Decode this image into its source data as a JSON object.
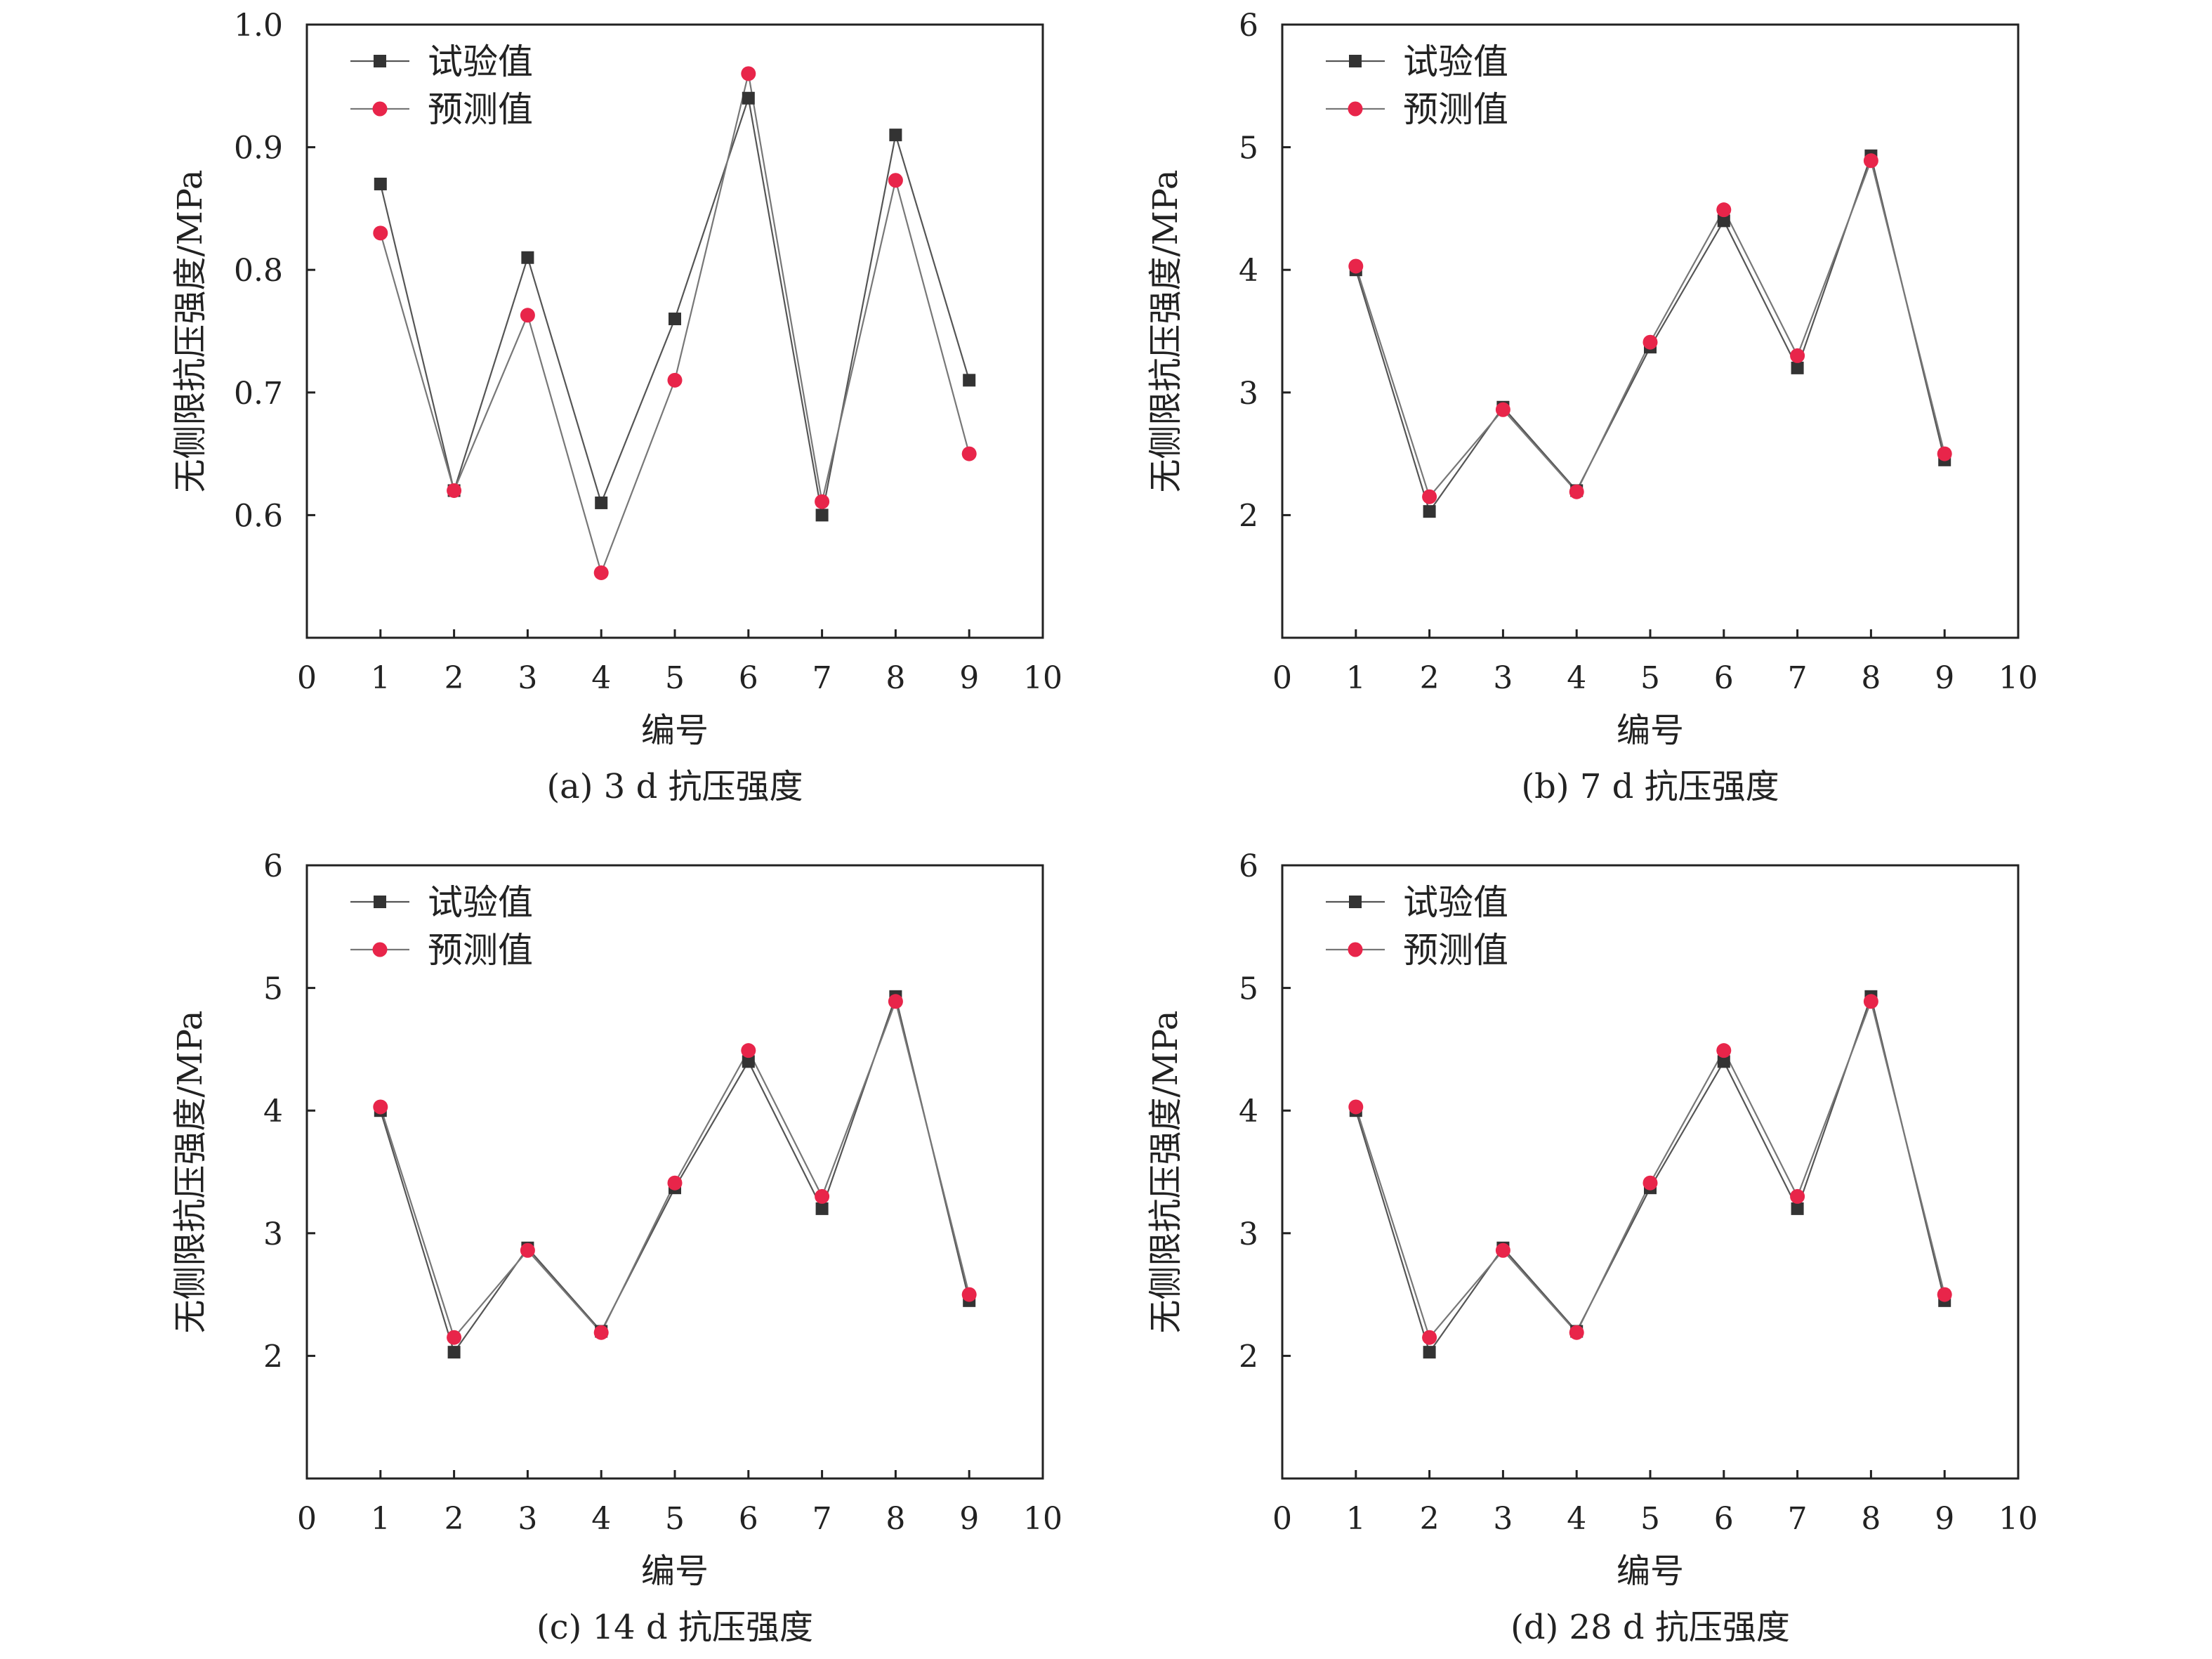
{
  "chart_data": [
    {
      "type": "line",
      "caption": "(a) 3 d 抗压强度",
      "xlabel": "编号",
      "ylabel": "无侧限抗压强度/MPa",
      "xlim": [
        0,
        10
      ],
      "ylim": [
        0.5,
        1.0
      ],
      "xticks": [
        0,
        1,
        2,
        3,
        4,
        5,
        6,
        7,
        8,
        9,
        10
      ],
      "yticks": [
        0.6,
        0.7,
        0.8,
        0.9,
        1.0
      ],
      "ytick_labels": [
        "0.6",
        "0.7",
        "0.8",
        "0.9",
        "1.0"
      ],
      "legend_position": "top-left",
      "series": [
        {
          "name": "试验值",
          "marker": "square",
          "color": "#333333",
          "x": [
            1,
            2,
            3,
            4,
            5,
            6,
            7,
            8,
            9
          ],
          "values": [
            0.87,
            0.62,
            0.81,
            0.61,
            0.76,
            0.94,
            0.6,
            0.91,
            0.71
          ]
        },
        {
          "name": "预测值",
          "marker": "circle",
          "color": "#e8254a",
          "x": [
            1,
            2,
            3,
            4,
            5,
            6,
            7,
            8,
            9
          ],
          "values": [
            0.83,
            0.62,
            0.763,
            0.553,
            0.71,
            0.96,
            0.611,
            0.873,
            0.65
          ]
        }
      ]
    },
    {
      "type": "line",
      "caption": "(b) 7 d 抗压强度",
      "xlabel": "编号",
      "ylabel": "无侧限抗压强度/MPa",
      "xlim": [
        0,
        10
      ],
      "ylim": [
        1,
        6
      ],
      "xticks": [
        0,
        1,
        2,
        3,
        4,
        5,
        6,
        7,
        8,
        9,
        10
      ],
      "yticks": [
        2,
        3,
        4,
        5,
        6
      ],
      "ytick_labels": [
        "2",
        "3",
        "4",
        "5",
        "6"
      ],
      "legend_position": "top-left",
      "series": [
        {
          "name": "试验值",
          "marker": "square",
          "color": "#333333",
          "x": [
            1,
            2,
            3,
            4,
            5,
            6,
            7,
            8,
            9
          ],
          "values": [
            4.0,
            2.03,
            2.88,
            2.2,
            3.37,
            4.4,
            3.2,
            4.93,
            2.45
          ]
        },
        {
          "name": "预测值",
          "marker": "circle",
          "color": "#e8254a",
          "x": [
            1,
            2,
            3,
            4,
            5,
            6,
            7,
            8,
            9
          ],
          "values": [
            4.03,
            2.15,
            2.86,
            2.19,
            3.41,
            4.49,
            3.3,
            4.89,
            2.5
          ]
        }
      ]
    },
    {
      "type": "line",
      "caption": "(c) 14 d 抗压强度",
      "xlabel": "编号",
      "ylabel": "无侧限抗压强度/MPa",
      "xlim": [
        0,
        10
      ],
      "ylim": [
        1,
        6
      ],
      "xticks": [
        0,
        1,
        2,
        3,
        4,
        5,
        6,
        7,
        8,
        9,
        10
      ],
      "yticks": [
        2,
        3,
        4,
        5,
        6
      ],
      "ytick_labels": [
        "2",
        "3",
        "4",
        "5",
        "6"
      ],
      "legend_position": "top-left",
      "series": [
        {
          "name": "试验值",
          "marker": "square",
          "color": "#333333",
          "x": [
            1,
            2,
            3,
            4,
            5,
            6,
            7,
            8,
            9
          ],
          "values": [
            4.0,
            2.03,
            2.88,
            2.2,
            3.37,
            4.4,
            3.2,
            4.93,
            2.45
          ]
        },
        {
          "name": "预测值",
          "marker": "circle",
          "color": "#e8254a",
          "x": [
            1,
            2,
            3,
            4,
            5,
            6,
            7,
            8,
            9
          ],
          "values": [
            4.03,
            2.15,
            2.86,
            2.19,
            3.41,
            4.49,
            3.3,
            4.89,
            2.5
          ]
        }
      ]
    },
    {
      "type": "line",
      "caption": "(d) 28 d 抗压强度",
      "xlabel": "编号",
      "ylabel": "无侧限抗压强度/MPa",
      "xlim": [
        0,
        10
      ],
      "ylim": [
        1,
        6
      ],
      "xticks": [
        0,
        1,
        2,
        3,
        4,
        5,
        6,
        7,
        8,
        9,
        10
      ],
      "yticks": [
        2,
        3,
        4,
        5,
        6
      ],
      "ytick_labels": [
        "2",
        "3",
        "4",
        "5",
        "6"
      ],
      "legend_position": "top-left",
      "series": [
        {
          "name": "试验值",
          "marker": "square",
          "color": "#333333",
          "x": [
            1,
            2,
            3,
            4,
            5,
            6,
            7,
            8,
            9
          ],
          "values": [
            4.0,
            2.03,
            2.88,
            2.2,
            3.37,
            4.4,
            3.2,
            4.93,
            2.45
          ]
        },
        {
          "name": "预测值",
          "marker": "circle",
          "color": "#e8254a",
          "x": [
            1,
            2,
            3,
            4,
            5,
            6,
            7,
            8,
            9
          ],
          "values": [
            4.03,
            2.15,
            2.86,
            2.19,
            3.41,
            4.49,
            3.3,
            4.89,
            2.5
          ]
        }
      ]
    }
  ]
}
